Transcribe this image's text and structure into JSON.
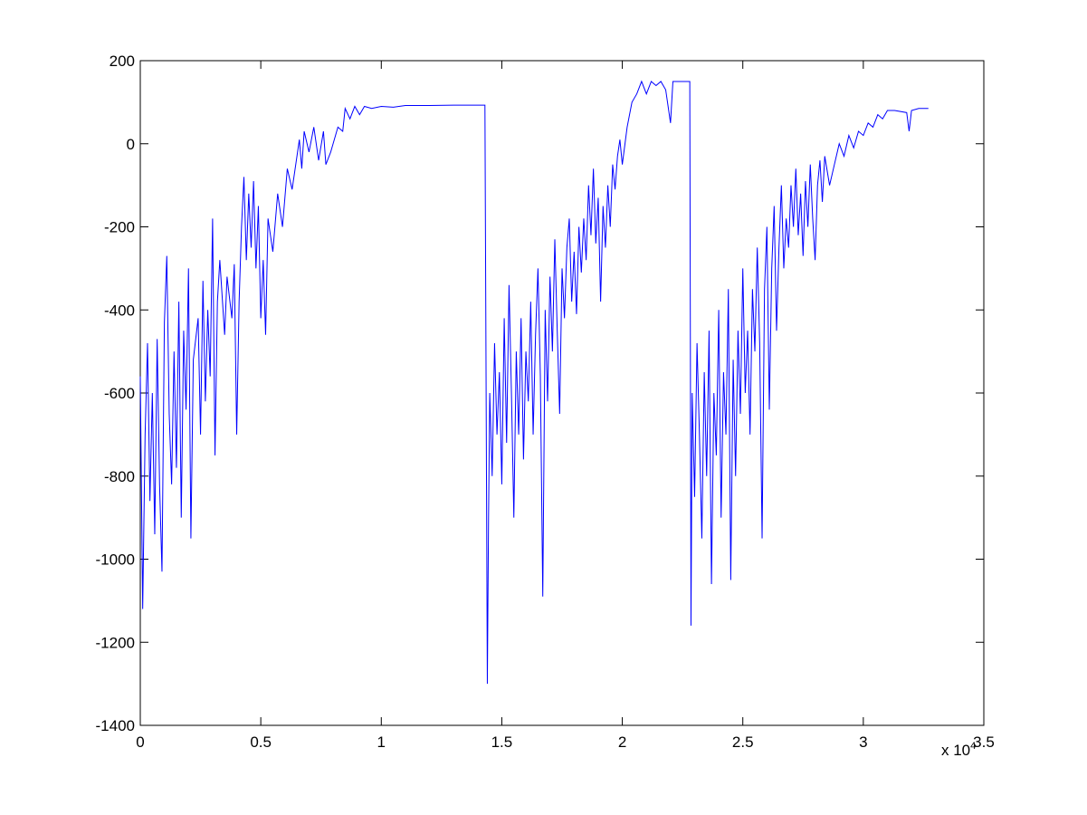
{
  "chart_data": {
    "type": "line",
    "series": [
      {
        "color": "#0000ff"
      }
    ],
    "x": [
      0.0,
      0.01,
      0.02,
      0.03,
      0.04,
      0.05,
      0.06,
      0.07,
      0.08,
      0.09,
      0.1,
      0.11,
      0.12,
      0.13,
      0.14,
      0.15,
      0.16,
      0.17,
      0.18,
      0.19,
      0.2,
      0.21,
      0.22,
      0.24,
      0.25,
      0.26,
      0.27,
      0.28,
      0.29,
      0.3,
      0.31,
      0.32,
      0.33,
      0.35,
      0.36,
      0.38,
      0.39,
      0.4,
      0.41,
      0.42,
      0.43,
      0.44,
      0.45,
      0.46,
      0.47,
      0.48,
      0.49,
      0.5,
      0.51,
      0.52,
      0.53,
      0.55,
      0.57,
      0.59,
      0.61,
      0.63,
      0.65,
      0.66,
      0.67,
      0.68,
      0.7,
      0.72,
      0.74,
      0.76,
      0.77,
      0.79,
      0.8,
      0.82,
      0.84,
      0.85,
      0.87,
      0.89,
      0.91,
      0.93,
      0.96,
      1.0,
      1.05,
      1.1,
      1.2,
      1.3,
      1.43,
      1.44,
      1.445,
      1.45,
      1.46,
      1.47,
      1.48,
      1.49,
      1.5,
      1.51,
      1.52,
      1.53,
      1.54,
      1.55,
      1.56,
      1.57,
      1.58,
      1.59,
      1.6,
      1.61,
      1.62,
      1.63,
      1.64,
      1.65,
      1.66,
      1.67,
      1.68,
      1.69,
      1.7,
      1.71,
      1.72,
      1.73,
      1.74,
      1.75,
      1.76,
      1.77,
      1.78,
      1.79,
      1.8,
      1.81,
      1.82,
      1.83,
      1.84,
      1.85,
      1.86,
      1.87,
      1.88,
      1.89,
      1.9,
      1.91,
      1.92,
      1.93,
      1.94,
      1.95,
      1.96,
      1.97,
      1.98,
      1.99,
      2.0,
      2.02,
      2.04,
      2.06,
      2.08,
      2.1,
      2.12,
      2.14,
      2.16,
      2.18,
      2.2,
      2.21,
      2.28,
      2.285,
      2.29,
      2.3,
      2.31,
      2.32,
      2.33,
      2.34,
      2.35,
      2.36,
      2.37,
      2.38,
      2.39,
      2.4,
      2.41,
      2.42,
      2.43,
      2.44,
      2.45,
      2.46,
      2.47,
      2.48,
      2.49,
      2.5,
      2.51,
      2.52,
      2.53,
      2.54,
      2.55,
      2.56,
      2.57,
      2.58,
      2.59,
      2.6,
      2.61,
      2.62,
      2.63,
      2.64,
      2.65,
      2.66,
      2.67,
      2.68,
      2.69,
      2.7,
      2.71,
      2.72,
      2.73,
      2.74,
      2.75,
      2.76,
      2.77,
      2.78,
      2.79,
      2.8,
      2.81,
      2.82,
      2.83,
      2.84,
      2.86,
      2.88,
      2.9,
      2.92,
      2.94,
      2.96,
      2.98,
      3.0,
      3.02,
      3.04,
      3.06,
      3.08,
      3.1,
      3.13,
      3.18,
      3.19,
      3.2,
      3.23,
      3.27
    ],
    "values": [
      -560,
      -1120,
      -700,
      -480,
      -860,
      -600,
      -940,
      -470,
      -820,
      -1030,
      -430,
      -270,
      -650,
      -820,
      -500,
      -780,
      -380,
      -900,
      -450,
      -640,
      -300,
      -950,
      -520,
      -420,
      -700,
      -330,
      -620,
      -400,
      -560,
      -180,
      -750,
      -380,
      -280,
      -460,
      -320,
      -420,
      -290,
      -700,
      -380,
      -200,
      -80,
      -280,
      -120,
      -250,
      -90,
      -300,
      -150,
      -420,
      -280,
      -460,
      -180,
      -260,
      -120,
      -200,
      -60,
      -110,
      -30,
      10,
      -60,
      30,
      -20,
      40,
      -40,
      30,
      -50,
      -20,
      0,
      40,
      30,
      85,
      60,
      90,
      70,
      90,
      85,
      90,
      88,
      92,
      92,
      93,
      93,
      -1300,
      -900,
      -600,
      -800,
      -480,
      -700,
      -550,
      -820,
      -420,
      -720,
      -340,
      -600,
      -900,
      -500,
      -700,
      -420,
      -760,
      -500,
      -620,
      -380,
      -700,
      -460,
      -300,
      -560,
      -1090,
      -400,
      -620,
      -320,
      -500,
      -230,
      -450,
      -650,
      -300,
      -420,
      -250,
      -180,
      -380,
      -260,
      -410,
      -200,
      -310,
      -180,
      -280,
      -100,
      -220,
      -60,
      -240,
      -130,
      -380,
      -150,
      -250,
      -100,
      -200,
      -50,
      -110,
      -30,
      10,
      -50,
      40,
      100,
      120,
      150,
      120,
      150,
      140,
      150,
      130,
      50,
      150,
      150,
      -1160,
      -600,
      -850,
      -480,
      -700,
      -950,
      -550,
      -800,
      -450,
      -1060,
      -600,
      -750,
      -400,
      -900,
      -550,
      -700,
      -350,
      -1050,
      -520,
      -800,
      -450,
      -650,
      -300,
      -600,
      -450,
      -700,
      -350,
      -500,
      -250,
      -480,
      -950,
      -350,
      -200,
      -640,
      -300,
      -150,
      -450,
      -250,
      -100,
      -300,
      -180,
      -250,
      -100,
      -200,
      -60,
      -220,
      -120,
      -270,
      -90,
      -200,
      -50,
      -180,
      -280,
      -100,
      -40,
      -140,
      -30,
      -100,
      -50,
      0,
      -30,
      20,
      -10,
      30,
      20,
      50,
      40,
      70,
      60,
      80,
      80,
      75,
      30,
      80,
      85,
      85
    ],
    "xlim": [
      0,
      3.5
    ],
    "xticks": [
      0,
      0.5,
      1,
      1.5,
      2,
      2.5,
      3,
      3.5
    ],
    "ylim": [
      -1400,
      200
    ],
    "yticks": [
      -1400,
      -1200,
      -1000,
      -800,
      -600,
      -400,
      -200,
      0,
      200
    ],
    "x_exponent_label": {
      "base": "x 10",
      "exponent": "4"
    }
  }
}
